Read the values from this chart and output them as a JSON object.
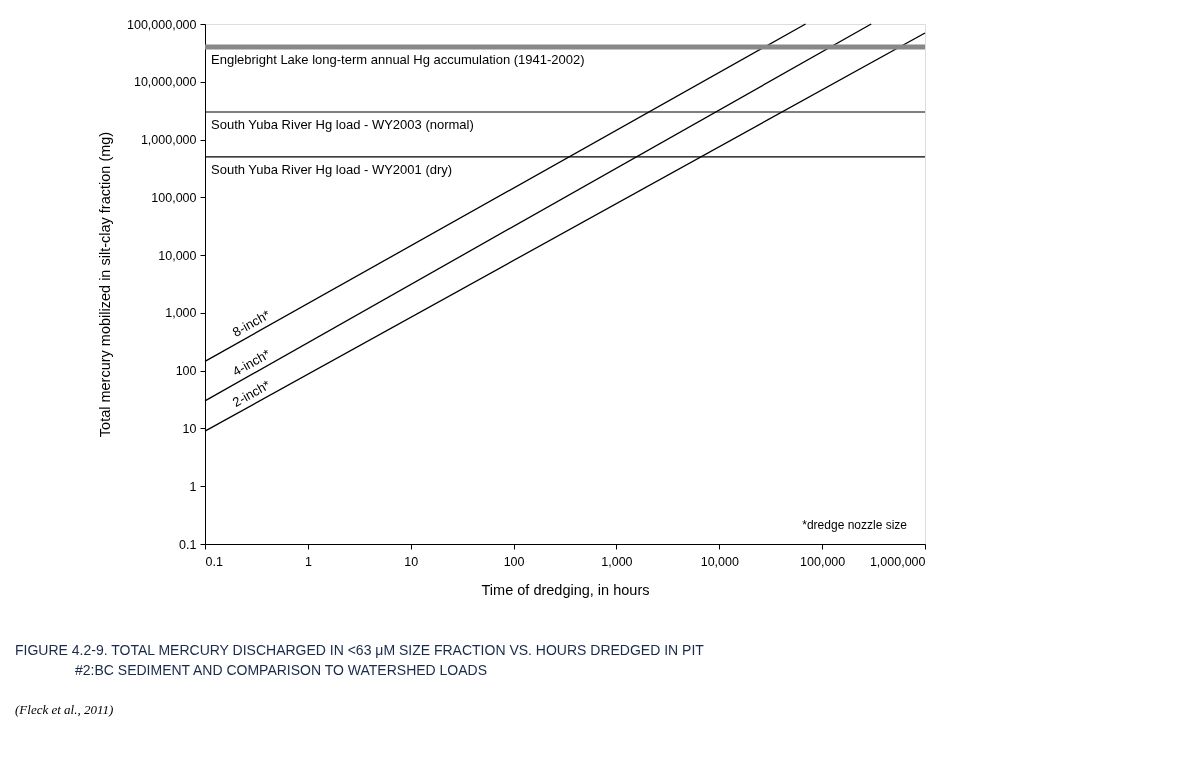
{
  "chart_data": {
    "type": "line",
    "title": "FIGURE 4.2-9. TOTAL MERCURY DISCHARGED IN <63 μM SIZE FRACTION VS. HOURS DREDGED IN PIT #2:BC SEDIMENT AND COMPARISON TO WATERSHED LOADS",
    "xlabel": "Time of dredging, in hours",
    "ylabel": "Total mercury mobilized in silt-clay fraction (mg)",
    "series": [
      {
        "name": "8-inch*",
        "color": "#000000",
        "x": [
          0.1,
          69000
        ],
        "values": [
          145,
          100000000
        ]
      },
      {
        "name": "4-inch*",
        "color": "#000000",
        "x": [
          0.1,
          300000
        ],
        "values": [
          30,
          100000000
        ]
      },
      {
        "name": "2-inch*",
        "color": "#000000",
        "x": [
          0.1,
          1000000
        ],
        "values": [
          9,
          70000000
        ]
      }
    ],
    "ref_lines": [
      {
        "axis": "y",
        "value": 40000000,
        "label": "Englebright Lake long-term annual Hg accumulation (1941-2002)",
        "color": "#888888"
      },
      {
        "axis": "y",
        "value": 3000000,
        "label": "South Yuba River Hg load - WY2003 (normal)",
        "color": "#000000"
      },
      {
        "axis": "y",
        "value": 500000,
        "label": "South Yuba River Hg load - WY2001 (dry)",
        "color": "#000000"
      }
    ],
    "annotations": [
      "*dredge nozzle size",
      "(Fleck et al., 2011)"
    ],
    "log": "xy",
    "xlim": [
      0.1,
      1000000
    ],
    "ylim": [
      0.1,
      100000000
    ],
    "xticks": [
      0.1,
      1,
      10,
      100,
      {
        "value": 1000,
        "label": "1,000"
      },
      {
        "value": 10000,
        "label": "10,000"
      },
      {
        "value": 100000,
        "label": "100,000"
      },
      {
        "value": 1000000,
        "label": "1,000,000"
      }
    ],
    "yticks": [
      0.1,
      1,
      10,
      100,
      {
        "value": 1000,
        "label": "1,000"
      },
      {
        "value": 10000,
        "label": "10,000"
      },
      {
        "value": 100000,
        "label": "100,000"
      },
      {
        "value": 1000000,
        "label": "1,000,000"
      },
      {
        "value": 10000000,
        "label": "10,000,000"
      },
      {
        "value": 100000000,
        "label": "100,000,000"
      }
    ],
    "grid": false,
    "legend": false,
    "marker": "none",
    "line_style": "solid"
  }
}
